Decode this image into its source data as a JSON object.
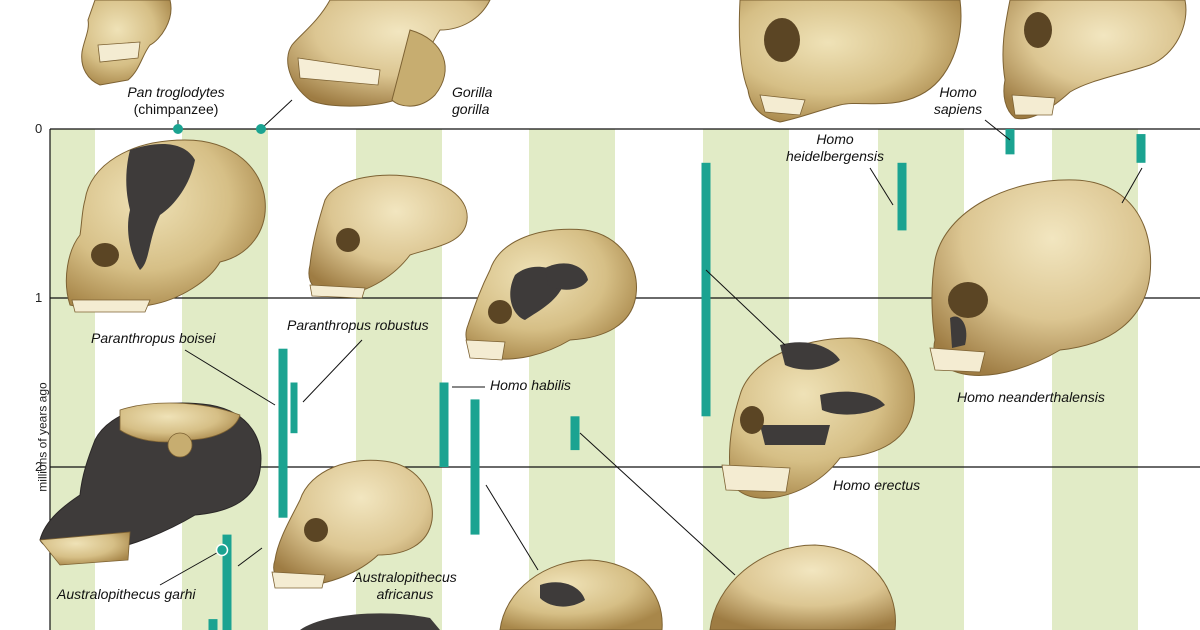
{
  "axis": {
    "label": "millions of years ago",
    "ticks": [
      "0",
      "1",
      "2"
    ]
  },
  "colors": {
    "band": "#e1ebc6",
    "range_bar": "#1ba391",
    "grid": "#111111",
    "skull_bone": "#d8c38d",
    "skull_shadow": "#9c7f45",
    "reconstruction": "#3e3b3a"
  },
  "species": [
    {
      "id": "pan",
      "line1": "Pan troglodytes",
      "line2": "(chimpanzee)"
    },
    {
      "id": "gorilla",
      "line1": "Gorilla",
      "line2": "gorilla"
    },
    {
      "id": "sapiens",
      "line1": "Homo",
      "line2": "sapiens"
    },
    {
      "id": "heidelbergensis",
      "line1": "Homo",
      "line2": "heidelbergensis"
    },
    {
      "id": "boisei",
      "line1": "Paranthropus boisei"
    },
    {
      "id": "robustus",
      "line1": "Paranthropus robustus"
    },
    {
      "id": "habilis",
      "line1": "Homo habilis"
    },
    {
      "id": "erectus",
      "line1": "Homo erectus"
    },
    {
      "id": "neanderthalensis",
      "line1": "Homo neanderthalensis"
    },
    {
      "id": "garhi",
      "line1": "Australopithecus garhi"
    },
    {
      "id": "africanus",
      "line1": "Australopithecus",
      "line2": "africanus"
    }
  ],
  "ranges_mya": [
    {
      "species": "boisei",
      "start": 2.3,
      "end": 1.3
    },
    {
      "species": "robustus",
      "start": 1.8,
      "end": 1.5
    },
    {
      "species": "habilis",
      "start": 2.0,
      "end": 1.5
    },
    {
      "species": "habilis_b",
      "start": 2.4,
      "end": 1.6
    },
    {
      "species": "unlabeled_short",
      "start": 1.9,
      "end": 1.7
    },
    {
      "species": "erectus",
      "start": 1.7,
      "end": 0.2
    },
    {
      "species": "heidelbergensis",
      "start": 0.6,
      "end": 0.2
    },
    {
      "species": "sapiens",
      "start": 0.15,
      "end": 0.0
    },
    {
      "species": "neanderthalensis",
      "start": 0.2,
      "end": 0.03
    },
    {
      "species": "garhi_a",
      "start": 3.0,
      "end": 2.4
    },
    {
      "species": "garhi_b",
      "start": 3.0,
      "end": 2.9
    }
  ],
  "present_day_markers": [
    "pan",
    "gorilla",
    "garhi"
  ]
}
